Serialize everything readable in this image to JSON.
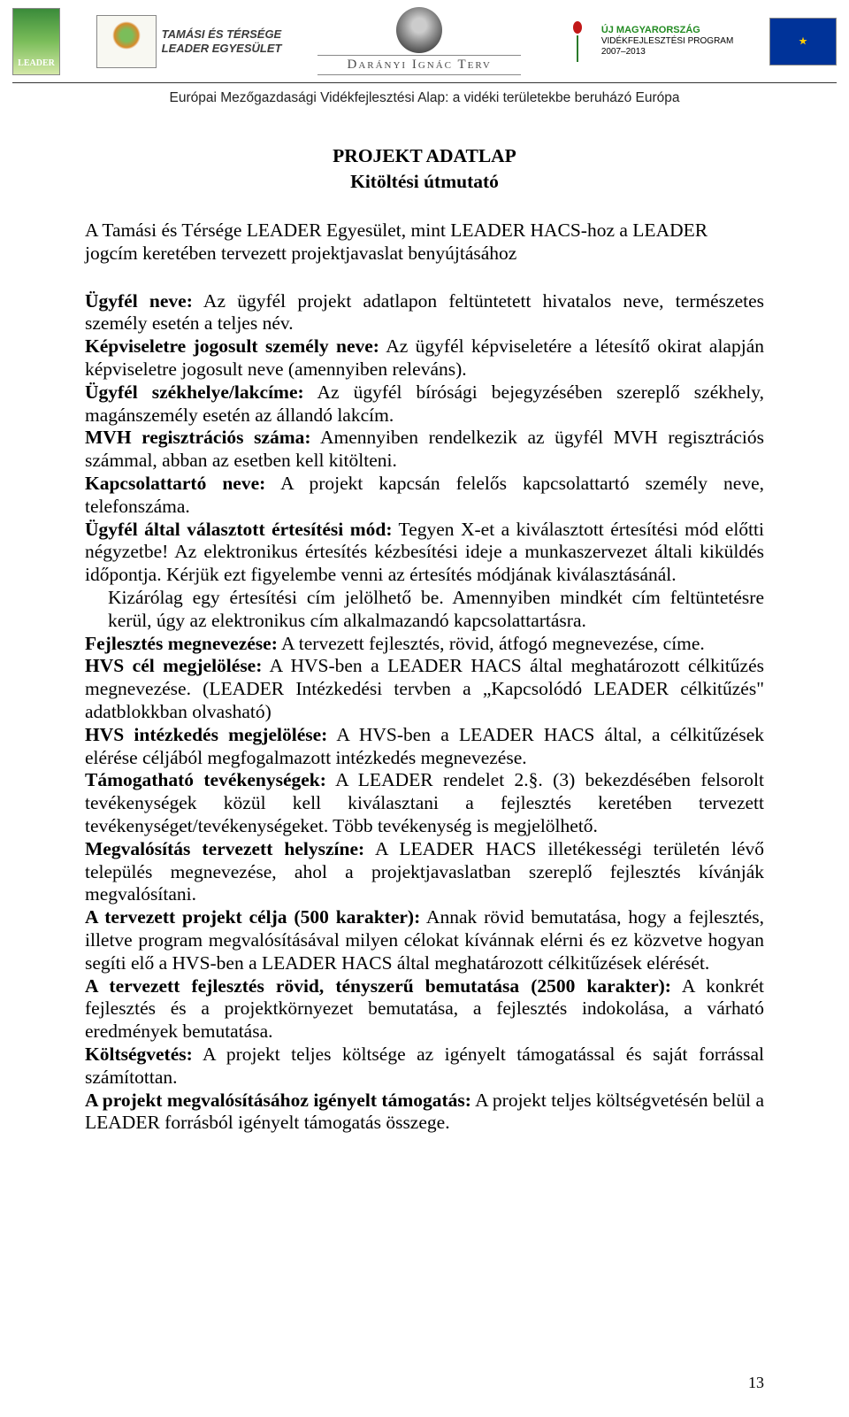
{
  "header": {
    "leader_label": "LEADER",
    "tamasi_text_1": "TAMÁSI ÉS TÉRSÉGE",
    "tamasi_text_2": "LEADER EGYESÜLET",
    "daranyi_text": "Darányi Ignác Terv",
    "umvp_line1": "ÚJ MAGYARORSZÁG",
    "umvp_line2": "VIDÉKFEJLESZTÉSI PROGRAM",
    "umvp_line3": "2007–2013",
    "subtext": "Európai Mezőgazdasági Vidékfejlesztési Alap: a vidéki területekbe beruházó Európa"
  },
  "doc": {
    "title1": "PROJEKT ADATLAP",
    "title2": "Kitöltési útmutató",
    "subtitle": "A Tamási és Térsége LEADER Egyesület, mint LEADER HACS-hoz a LEADER jogcím keretében tervezett projektjavaslat benyújtásához",
    "p1_b": "Ügyfél neve:",
    "p1": " Az ügyfél projekt adatlapon feltüntetett hivatalos neve, természetes személy esetén a teljes név.",
    "p2_b": "Képviseletre jogosult személy neve:",
    "p2": " Az ügyfél képviseletére a létesítő okirat alapján képviseletre jogosult neve (amennyiben releváns).",
    "p3_b": "Ügyfél székhelye/lakcíme:",
    "p3": " Az ügyfél bírósági bejegyzésében szereplő székhely, magánszemély esetén az állandó lakcím.",
    "p4_b": "MVH regisztrációs száma:",
    "p4": " Amennyiben rendelkezik az ügyfél MVH regisztrációs számmal, abban az esetben kell kitölteni.",
    "p5_b": "Kapcsolattartó neve:",
    "p5": " A projekt kapcsán felelős kapcsolattartó személy neve, telefonszáma.",
    "p6_b": "Ügyfél által választott értesítési mód:",
    "p6": " Tegyen X-et a kiválasztott értesítési mód előtti négyzetbe! Az elektronikus értesítés kézbesítési ideje a munkaszervezet általi kiküldés időpontja. Kérjük ezt figyelembe venni az értesítés módjának kiválasztásánál.",
    "p6a": "Kizárólag egy értesítési cím jelölhető be. Amennyiben mindkét cím feltüntetésre kerül, úgy az elektronikus cím alkalmazandó kapcsolattartásra.",
    "p7_b": "Fejlesztés megnevezése:",
    "p7": " A tervezett fejlesztés, rövid, átfogó megnevezése, címe.",
    "p8_b": "HVS cél megjelölése:",
    "p8": " A HVS-ben a LEADER HACS által meghatározott célkitűzés megnevezése. (LEADER Intézkedési tervben a „Kapcsolódó LEADER célkitűzés\" adatblokkban olvasható)",
    "p9_b": "HVS intézkedés megjelölése:",
    "p9": " A HVS-ben a LEADER HACS által, a célkitűzések elérése céljából megfogalmazott intézkedés megnevezése.",
    "p10_b": "Támogatható tevékenységek:",
    "p10": " A LEADER rendelet 2.§. (3) bekezdésében felsorolt tevékenységek közül kell kiválasztani a fejlesztés keretében tervezett tevékenységet/tevékenységeket. Több tevékenység is megjelölhető.",
    "p11_b": "Megvalósítás tervezett helyszíne:",
    "p11": " A LEADER HACS illetékességi területén lévő település megnevezése, ahol a projektjavaslatban szereplő fejlesztés kívánják megvalósítani.",
    "p12_b": "A tervezett projekt célja (500 karakter):",
    "p12": " Annak rövid bemutatása, hogy a fejlesztés, illetve program megvalósításával milyen célokat kívánnak elérni és ez közvetve hogyan segíti elő a HVS-ben a LEADER HACS által meghatározott célkitűzések elérését.",
    "p13_b": "A tervezett fejlesztés rövid, tényszerű bemutatása (2500 karakter):",
    "p13": " A konkrét fejlesztés és a projektkörnyezet bemutatása, a fejlesztés indokolása, a várható eredmények bemutatása.",
    "p14_b": "Költségvetés:",
    "p14": " A projekt teljes költsége az igényelt támogatással és saját forrással számítottan.",
    "p15_b": "A projekt megvalósításához igényelt támogatás:",
    "p15": " A projekt teljes költségvetésén belül a LEADER forrásból igényelt támogatás összege."
  },
  "page_number": "13"
}
